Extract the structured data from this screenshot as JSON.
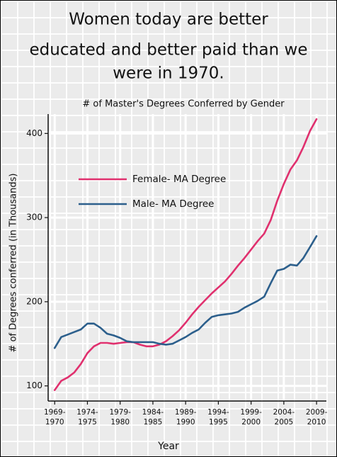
{
  "chart_data": {
    "type": "line",
    "title": [
      "Women today are better",
      "educated and better paid than we",
      "were in 1970."
    ],
    "subtitle": "# of Master's Degrees Conferred by Gender",
    "x_label": "Year",
    "y_label": "# of Degrees conferred (in Thousands)",
    "x": [
      1970,
      1971,
      1972,
      1973,
      1974,
      1975,
      1976,
      1977,
      1978,
      1979,
      1980,
      1981,
      1982,
      1983,
      1984,
      1985,
      1986,
      1987,
      1988,
      1989,
      1990,
      1991,
      1992,
      1993,
      1994,
      1995,
      1996,
      1997,
      1998,
      1999,
      2000,
      2001,
      2002,
      2003,
      2004,
      2005,
      2006,
      2007,
      2008,
      2009,
      2010
    ],
    "series": [
      {
        "name": "Female- MA Degree",
        "color": "#e0306e",
        "values": [
          95,
          106,
          110,
          116,
          126,
          139,
          147,
          151,
          151,
          150,
          151,
          152,
          152,
          149,
          147,
          147,
          149,
          153,
          159,
          166,
          175,
          185,
          194,
          202,
          210,
          217,
          224,
          233,
          243,
          252,
          262,
          272,
          281,
          297,
          320,
          340,
          357,
          368,
          384,
          403,
          417
        ]
      },
      {
        "name": "Male- MA Degree",
        "color": "#2c5f8c",
        "values": [
          145,
          158,
          161,
          164,
          167,
          174,
          174,
          169,
          162,
          160,
          157,
          153,
          152,
          152,
          152,
          152,
          150,
          149,
          150,
          154,
          158,
          163,
          167,
          175,
          182,
          184,
          185,
          186,
          188,
          193,
          197,
          201,
          206,
          222,
          237,
          239,
          244,
          243,
          252,
          265,
          278
        ]
      }
    ],
    "xlim": [
      1969,
      2011.5
    ],
    "xticks": [
      {
        "value": 1970,
        "label": "1969-1970"
      },
      {
        "value": 1975,
        "label": "1974-1975"
      },
      {
        "value": 1980,
        "label": "1979-1980"
      },
      {
        "value": 1985,
        "label": "1984-1985"
      },
      {
        "value": 1990,
        "label": "1989-1990"
      },
      {
        "value": 1995,
        "label": "1994-1995"
      },
      {
        "value": 2000,
        "label": "1999-2000"
      },
      {
        "value": 2005,
        "label": "2004-2005"
      },
      {
        "value": 2010,
        "label": "2009-2010"
      }
    ],
    "ylim": [
      82,
      423
    ],
    "yticks": [
      100,
      200,
      300,
      400
    ],
    "grid": true,
    "legend": "upper left"
  }
}
